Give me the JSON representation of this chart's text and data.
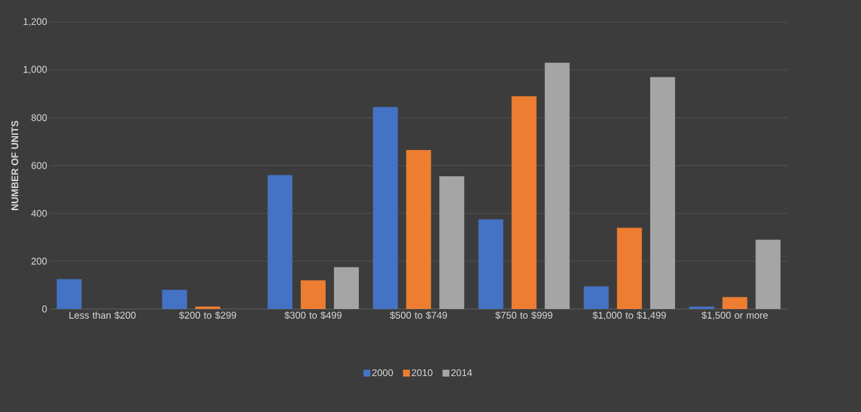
{
  "chart_data": {
    "type": "bar",
    "ylabel": "NUMBER OF UNITS",
    "categories": [
      "Less than $200",
      "$200 to $299",
      "$300 to $499",
      "$500 to $749",
      "$750 to $999",
      "$1,000 to $1,499",
      "$1,500 or more"
    ],
    "series": [
      {
        "name": "2000",
        "color": "#4472c4",
        "values": [
          125,
          80,
          560,
          845,
          375,
          95,
          10
        ]
      },
      {
        "name": "2010",
        "color": "#ed7d31",
        "values": [
          0,
          10,
          120,
          665,
          890,
          340,
          50
        ]
      },
      {
        "name": "2014",
        "color": "#a5a5a5",
        "values": [
          0,
          0,
          175,
          555,
          1030,
          970,
          290
        ]
      }
    ],
    "ylim": [
      0,
      1200
    ],
    "yticks": [
      0,
      200,
      400,
      600,
      800,
      {
        "value": 1000,
        "label": "1,000"
      },
      {
        "value": 1200,
        "label": "1,200"
      }
    ],
    "grid": "y",
    "legend": "bottom"
  }
}
